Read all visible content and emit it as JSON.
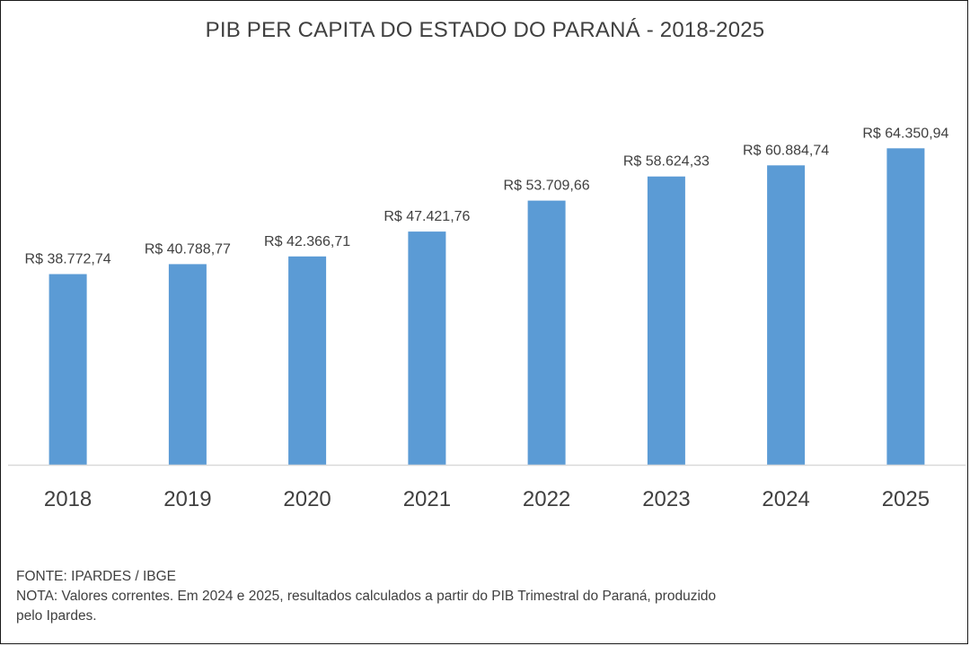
{
  "chart_data": {
    "type": "bar",
    "title": "PIB PER CAPITA DO ESTADO DO PARANÁ - 2018-2025",
    "categories": [
      "2018",
      "2019",
      "2020",
      "2021",
      "2022",
      "2023",
      "2024",
      "2025"
    ],
    "values": [
      38772.74,
      40788.77,
      42366.71,
      47421.76,
      53709.66,
      58624.33,
      60884.74,
      64350.94
    ],
    "data_labels": [
      "R$ 38.772,74",
      "R$ 40.788,77",
      "R$ 42.366,71",
      "R$ 47.421,76",
      "R$ 53.709,66",
      "R$ 58.624,33",
      "R$ 60.884,74",
      "R$ 64.350,94"
    ],
    "ylim": [
      0,
      67500
    ],
    "grid": false,
    "legend": "none",
    "xlabel": "",
    "ylabel": "",
    "bar_color": "#5b9bd5",
    "axis_color": "#d9d9d9"
  },
  "footer": {
    "source": "FONTE: IPARDES / IBGE",
    "note_line1": "NOTA: Valores correntes. Em 2024 e 2025, resultados calculados a partir do PIB Trimestral do Paraná, produzido",
    "note_line2": "pelo Ipardes."
  }
}
